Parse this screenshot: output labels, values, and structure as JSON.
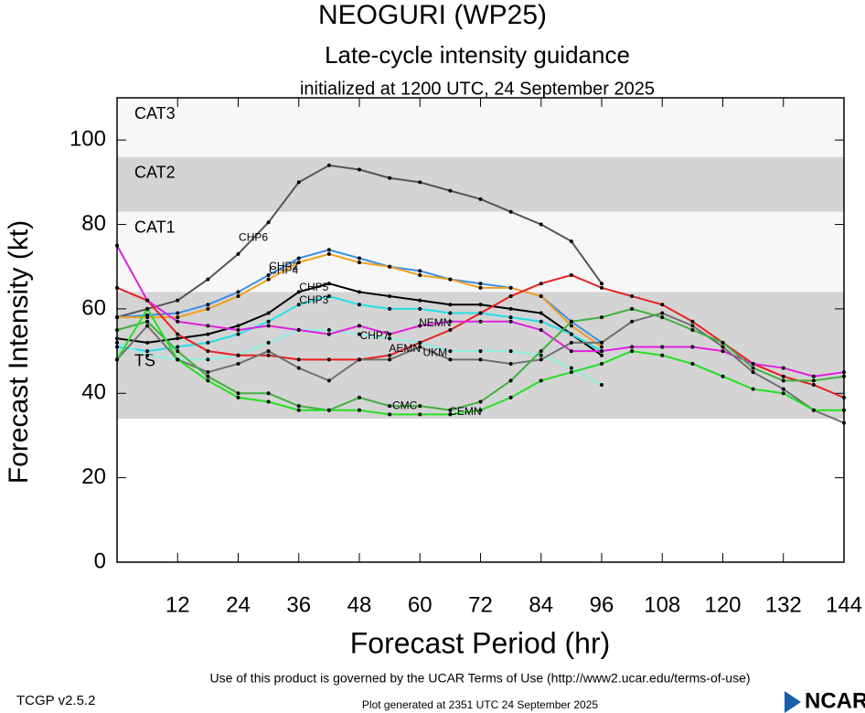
{
  "chart_data": {
    "type": "line",
    "title": "NEOGURI (WP25)",
    "subtitle": "Late-cycle intensity guidance",
    "initialized": "initialized at 1200 UTC, 24 September 2025",
    "x_label": "Forecast Period (hr)",
    "y_label": "Forecast Intensity (kt)",
    "terms": "Use of this product is governed by the UCAR Terms of Use (http://www2.ucar.edu/terms-of-use)",
    "version": "TCGP v2.5.2",
    "generated": "Plot generated at 2351 UTC   24 September 2025",
    "logo": "NCAR",
    "xlim": [
      0,
      144
    ],
    "ylim": [
      0,
      110
    ],
    "xticks": [
      12,
      24,
      36,
      48,
      60,
      72,
      84,
      96,
      108,
      120,
      132,
      144
    ],
    "yticks": [
      0,
      20,
      40,
      60,
      80,
      100
    ],
    "bands": [
      {
        "label": "CAT3",
        "from": 96,
        "to": 110,
        "color": "#f7f7f7"
      },
      {
        "label": "CAT2",
        "from": 83,
        "to": 96,
        "color": "#d4d4d4"
      },
      {
        "label": "CAT1",
        "from": 64,
        "to": 83,
        "color": "#f7f7f7"
      },
      {
        "label": "TS",
        "from": 34,
        "to": 64,
        "color": "#d4d4d4"
      }
    ],
    "x": [
      0,
      6,
      12,
      18,
      24,
      30,
      36,
      42,
      48,
      54,
      60,
      66,
      72,
      78,
      84,
      90,
      96,
      102,
      108,
      114,
      120,
      126,
      132,
      138,
      144
    ],
    "series": [
      {
        "name": "CHP6",
        "color": "#555555",
        "values": [
          58,
          60,
          62,
          67,
          73,
          80.5,
          90,
          94,
          93,
          91,
          90,
          88,
          86,
          83,
          80,
          76,
          66,
          null,
          null,
          null,
          null,
          null,
          null,
          null,
          null
        ]
      },
      {
        "name": "CHP2",
        "color": "#3a8ee6",
        "values": [
          58,
          58.5,
          59,
          61,
          64,
          68,
          72,
          74,
          72,
          70,
          69,
          67,
          66,
          65,
          63,
          57,
          52,
          null,
          null,
          null,
          null,
          null,
          null,
          null,
          null
        ]
      },
      {
        "name": "CHP4",
        "color": "#f0a020",
        "values": [
          58,
          58,
          58,
          60,
          63,
          67,
          71,
          73,
          71,
          70,
          68,
          67,
          65,
          65,
          63,
          56,
          51,
          null,
          null,
          null,
          null,
          null,
          null,
          null,
          null
        ]
      },
      {
        "name": "CHP5",
        "color": "#000000",
        "values": [
          53,
          52,
          53,
          54,
          56,
          59,
          64,
          66,
          64,
          63,
          62,
          61,
          61,
          60,
          59,
          54,
          49,
          null,
          null,
          null,
          null,
          null,
          null,
          null,
          null
        ]
      },
      {
        "name": "CHP3",
        "color": "#22e0e8",
        "values": [
          51,
          50,
          51,
          52,
          54,
          57,
          61,
          63,
          61,
          60,
          60,
          59,
          59,
          58,
          57,
          54,
          50,
          null,
          null,
          null,
          null,
          null,
          null,
          null,
          null
        ]
      },
      {
        "name": "CHP7",
        "color": "#90f0e0",
        "values": [
          52,
          49,
          48,
          48,
          49,
          52,
          55,
          55,
          54,
          53,
          52,
          50,
          50,
          50,
          49,
          46,
          42,
          null,
          null,
          null,
          null,
          null,
          null,
          null,
          null
        ]
      },
      {
        "name": "AEMN",
        "color": "#e82020",
        "values": [
          65,
          62,
          54,
          50,
          49,
          49,
          48,
          48,
          48,
          49,
          52,
          55,
          59,
          63,
          66,
          68,
          65,
          63,
          61,
          57,
          52,
          47,
          44,
          42,
          39
        ]
      },
      {
        "name": "NEMN",
        "color": "#e020e0",
        "values": [
          75,
          62,
          57,
          56,
          55,
          56,
          55,
          54,
          56,
          54,
          56,
          57,
          57,
          57,
          55,
          50,
          50,
          51,
          51,
          51,
          50,
          47,
          46,
          44,
          45
        ]
      },
      {
        "name": "UKM",
        "color": "#707070",
        "values": [
          48,
          56,
          48,
          45,
          47,
          50,
          46,
          43,
          48,
          48,
          51,
          48,
          48,
          47,
          48,
          52,
          52,
          57,
          59,
          56,
          51,
          45,
          41,
          36,
          33
        ]
      },
      {
        "name": "CMC",
        "color": "#40b040",
        "values": [
          55,
          57,
          50,
          44,
          40,
          40,
          37,
          36,
          39,
          37,
          37,
          36,
          38,
          43,
          50,
          57,
          58,
          60,
          58,
          55,
          52,
          46,
          43,
          43,
          44
        ]
      },
      {
        "name": "CEMN",
        "color": "#22e022",
        "values": [
          48,
          60,
          48,
          43,
          39,
          38,
          36,
          36,
          36,
          35,
          35,
          35,
          36,
          39,
          43,
          45,
          47,
          50,
          49,
          47,
          44,
          41,
          40,
          36,
          36
        ]
      }
    ]
  }
}
